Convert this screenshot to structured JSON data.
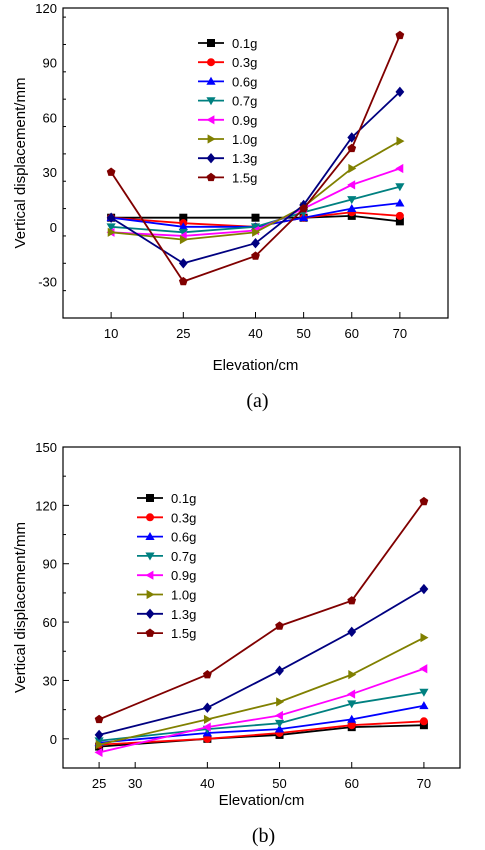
{
  "colors": {
    "0.1g": "#000000",
    "0.3g": "#ff0000",
    "0.6g": "#0000ff",
    "0.7g": "#008080",
    "0.9g": "#ff00ff",
    "1.0g": "#808000",
    "1.3g": "#000080",
    "1.5g": "#800000"
  },
  "markers": {
    "0.1g": "square",
    "0.3g": "circle",
    "0.6g": "triangle-up",
    "0.7g": "triangle-down",
    "0.9g": "triangle-left",
    "1.0g": "triangle-right",
    "1.3g": "diamond",
    "1.5g": "pentagon"
  },
  "chart_data": [
    {
      "type": "line",
      "panel_label": "(a)",
      "xlabel": "Elevation/cm",
      "ylabel": "Vertical displacement/mm",
      "x": [
        10,
        25,
        40,
        50,
        60,
        70
      ],
      "x_ticks": [
        10,
        25,
        40,
        50,
        60,
        70
      ],
      "y_ticks": [
        -30,
        0,
        30,
        60,
        90,
        120
      ],
      "ylim": [
        -50,
        120
      ],
      "grid": false,
      "legend": "top-left",
      "series": [
        {
          "name": "0.1g",
          "values": [
            5,
            5,
            5,
            5,
            6,
            3
          ]
        },
        {
          "name": "0.3g",
          "values": [
            5,
            2,
            0,
            5,
            8,
            6
          ]
        },
        {
          "name": "0.6g",
          "values": [
            5,
            0,
            0,
            5,
            10,
            13
          ]
        },
        {
          "name": "0.7g",
          "values": [
            0,
            -3,
            0,
            8,
            15,
            22
          ]
        },
        {
          "name": "0.9g",
          "values": [
            -3,
            -5,
            -2,
            10,
            23,
            32
          ]
        },
        {
          "name": "1.0g",
          "values": [
            -3,
            -7,
            -3,
            11,
            32,
            47
          ]
        },
        {
          "name": "1.3g",
          "values": [
            5,
            -20,
            -9,
            12,
            49,
            74
          ]
        },
        {
          "name": "1.5g",
          "values": [
            30,
            -30,
            -16,
            10,
            43,
            105
          ]
        }
      ]
    },
    {
      "type": "line",
      "panel_label": "(b)",
      "xlabel": "Elevation/cm",
      "ylabel": "Vertical displacement/mm",
      "x": [
        25,
        40,
        50,
        60,
        70
      ],
      "x_ticks": [
        25,
        30,
        40,
        50,
        60,
        70
      ],
      "y_ticks": [
        0,
        30,
        60,
        90,
        120,
        150
      ],
      "ylim": [
        -15,
        150
      ],
      "grid": false,
      "legend": "top-left",
      "series": [
        {
          "name": "0.1g",
          "values": [
            -4,
            0,
            2,
            6,
            7
          ]
        },
        {
          "name": "0.3g",
          "values": [
            -3,
            0,
            3,
            7,
            9
          ]
        },
        {
          "name": "0.6g",
          "values": [
            -2,
            3,
            5,
            10,
            17
          ]
        },
        {
          "name": "0.7g",
          "values": [
            -1,
            5,
            8,
            18,
            24
          ]
        },
        {
          "name": "0.9g",
          "values": [
            -7,
            6,
            12,
            23,
            36
          ]
        },
        {
          "name": "1.0g",
          "values": [
            -3,
            10,
            19,
            33,
            52
          ]
        },
        {
          "name": "1.3g",
          "values": [
            2,
            16,
            35,
            55,
            77
          ]
        },
        {
          "name": "1.5g",
          "values": [
            10,
            33,
            58,
            71,
            122
          ]
        }
      ]
    }
  ]
}
